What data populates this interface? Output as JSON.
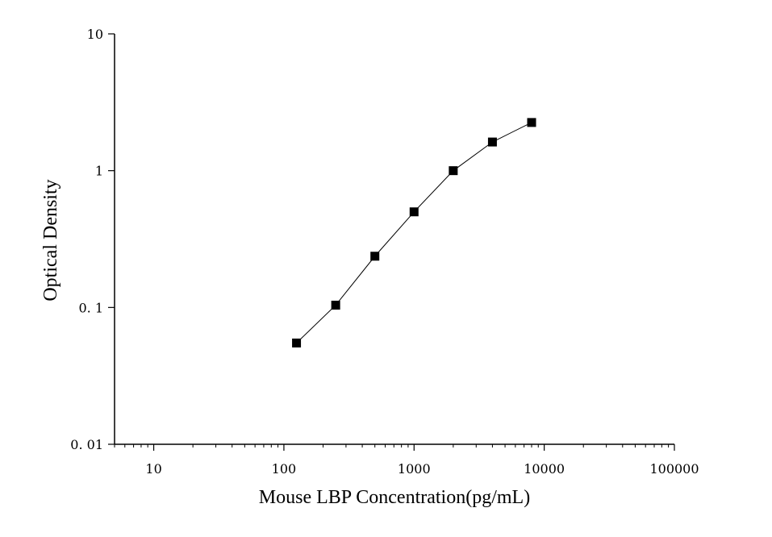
{
  "chart_data": {
    "type": "scatter",
    "title": "",
    "xlabel": "Mouse LBP Concentration(pg/mL)",
    "ylabel": "Optical Density",
    "xscale": "log",
    "yscale": "log",
    "xlim": [
      5,
      100000
    ],
    "ylim": [
      0.01,
      10
    ],
    "x_ticks": [
      10,
      100,
      1000,
      10000,
      100000
    ],
    "x_tick_labels": [
      "10",
      "100",
      "1000",
      "10000",
      "100000"
    ],
    "y_ticks": [
      0.01,
      0.1,
      1,
      10
    ],
    "y_tick_labels": [
      "0. 01",
      "0. 1",
      "1",
      "10"
    ],
    "grid": false,
    "legend": "none",
    "series": [
      {
        "marker": "square",
        "connected": true,
        "color": "#000000",
        "points": [
          {
            "x": 125,
            "y": 0.055
          },
          {
            "x": 250,
            "y": 0.104
          },
          {
            "x": 500,
            "y": 0.237
          },
          {
            "x": 1000,
            "y": 0.5
          },
          {
            "x": 2000,
            "y": 1.0
          },
          {
            "x": 4000,
            "y": 1.62
          },
          {
            "x": 8000,
            "y": 2.25
          }
        ]
      }
    ]
  }
}
